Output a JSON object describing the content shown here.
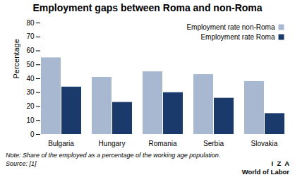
{
  "chart_data": {
    "type": "bar",
    "title": "Employment gaps between Roma and non-Roma",
    "categories": [
      "Bulgaria",
      "Hungary",
      "Romania",
      "Serbia",
      "Slovakia"
    ],
    "series": [
      {
        "name": "Employment rate non-Roma",
        "color": "#a8b8d0",
        "values": [
          55,
          41,
          45,
          43,
          38
        ]
      },
      {
        "name": "Employment rate Roma",
        "color": "#1a3a6b",
        "values": [
          34,
          23,
          30,
          26,
          15
        ]
      }
    ],
    "ylabel": "Percentage",
    "ylim": [
      0,
      80
    ],
    "yticks": [
      0,
      10,
      20,
      30,
      40,
      50,
      60,
      70,
      80
    ],
    "legend": "upper right",
    "grid": false,
    "annotations": [
      "Note: Share of the employed as a percentage of the working age population.",
      "Source: [1]",
      "I  Z  A",
      "World of Labor"
    ]
  }
}
